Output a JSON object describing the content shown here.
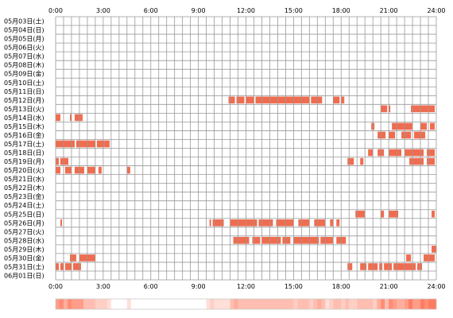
{
  "chart_data": {
    "type": "heatmap",
    "x_ticks": [
      "0:00",
      "3:00",
      "6:00",
      "9:00",
      "12:00",
      "15:00",
      "18:00",
      "21:00",
      "24:00"
    ],
    "x_range_hours": [
      0,
      24
    ],
    "row_labels": [
      "05月03日(土)",
      "05月04日(日)",
      "05月05日(月)",
      "05月06日(火)",
      "05月07日(水)",
      "05月08日(木)",
      "05月09日(金)",
      "05月10日(土)",
      "05月11日(日)",
      "05月12日(月)",
      "05月13日(火)",
      "05月14日(水)",
      "05月15日(木)",
      "05月16日(金)",
      "05月17日(土)",
      "05月18日(日)",
      "05月19日(月)",
      "05月20日(火)",
      "05月21日(水)",
      "05月22日(木)",
      "05月23日(金)",
      "05月24日(土)",
      "05月25日(日)",
      "05月26日(月)",
      "05月27日(火)",
      "05月28日(水)",
      "05月29日(木)",
      "05月30日(金)",
      "05月31日(土)",
      "06月01日(日)"
    ],
    "activity_intervals_hours": [
      [],
      [],
      [],
      [],
      [],
      [],
      [],
      [],
      [],
      [
        [
          10.9,
          11.3
        ],
        [
          11.4,
          11.9
        ],
        [
          12.0,
          12.5
        ],
        [
          12.6,
          16.0
        ],
        [
          16.1,
          16.8
        ],
        [
          17.5,
          17.9
        ],
        [
          18.0,
          18.2
        ]
      ],
      [
        [
          20.5,
          20.9
        ],
        [
          21.0,
          21.1
        ],
        [
          22.4,
          23.9
        ]
      ],
      [
        [
          0.0,
          0.3
        ],
        [
          0.9,
          1.0
        ],
        [
          1.2,
          1.7
        ]
      ],
      [
        [
          19.9,
          20.1
        ],
        [
          21.2,
          22.5
        ],
        [
          23.0,
          23.4
        ],
        [
          23.6,
          23.9
        ]
      ],
      [
        [
          20.3,
          20.8
        ],
        [
          21.0,
          21.4
        ],
        [
          21.8,
          22.4
        ],
        [
          22.6,
          23.3
        ],
        [
          24.0,
          24.3
        ]
      ],
      [
        [
          0.0,
          1.2
        ],
        [
          1.3,
          2.5
        ],
        [
          2.6,
          3.1
        ],
        [
          3.1,
          3.4
        ]
      ],
      [
        [
          19.7,
          20.0
        ],
        [
          20.3,
          20.7
        ],
        [
          21.0,
          21.8
        ],
        [
          22.0,
          23.2
        ],
        [
          23.4,
          23.9
        ]
      ],
      [
        [
          0.0,
          0.2
        ],
        [
          0.3,
          0.8
        ],
        [
          18.4,
          18.8
        ],
        [
          19.2,
          19.4
        ],
        [
          22.3,
          23.2
        ],
        [
          23.4,
          23.9
        ]
      ],
      [
        [
          0.0,
          0.3
        ],
        [
          0.6,
          1.0
        ],
        [
          1.2,
          1.8
        ],
        [
          2.0,
          2.5
        ],
        [
          2.7,
          2.9
        ],
        [
          4.5,
          4.7
        ]
      ],
      [],
      [],
      [],
      [],
      [
        [
          18.9,
          19.5
        ],
        [
          20.5,
          20.7
        ],
        [
          21.0,
          21.6
        ],
        [
          23.7,
          23.9
        ]
      ],
      [
        [
          0.3,
          0.4
        ],
        [
          9.7,
          9.8
        ],
        [
          9.9,
          10.6
        ],
        [
          11.0,
          12.7
        ],
        [
          12.8,
          13.7
        ],
        [
          13.9,
          15.0
        ],
        [
          15.3,
          16.0
        ],
        [
          16.3,
          17.0
        ],
        [
          17.3,
          17.5
        ],
        [
          17.7,
          17.9
        ]
      ],
      [],
      [
        [
          11.2,
          12.2
        ],
        [
          12.4,
          12.9
        ],
        [
          13.0,
          14.2
        ],
        [
          14.3,
          14.8
        ],
        [
          15.0,
          16.6
        ],
        [
          16.7,
          17.5
        ],
        [
          17.7,
          18.3
        ]
      ],
      [
        [
          23.7,
          24.0
        ]
      ],
      [
        [
          0.9,
          1.3
        ],
        [
          1.5,
          2.5
        ],
        [
          22.1,
          22.4
        ],
        [
          23.2,
          23.9
        ]
      ],
      [
        [
          0.0,
          0.2
        ],
        [
          0.3,
          0.5
        ],
        [
          0.6,
          1.0
        ],
        [
          1.1,
          1.6
        ],
        [
          18.4,
          18.7
        ],
        [
          19.2,
          19.6
        ],
        [
          19.7,
          20.3
        ],
        [
          20.4,
          20.6
        ],
        [
          20.7,
          21.2
        ],
        [
          21.3,
          22.7
        ],
        [
          22.8,
          23.1
        ]
      ],
      []
    ],
    "density_strip": "hour-of-day activity density across all days (light to dark red)",
    "colors": {
      "activity": "#f06c4f",
      "grid": "#999999",
      "background": "#ffffff",
      "density_low": "#fff0ec",
      "density_high": "#ff7c62"
    },
    "grid": true
  }
}
